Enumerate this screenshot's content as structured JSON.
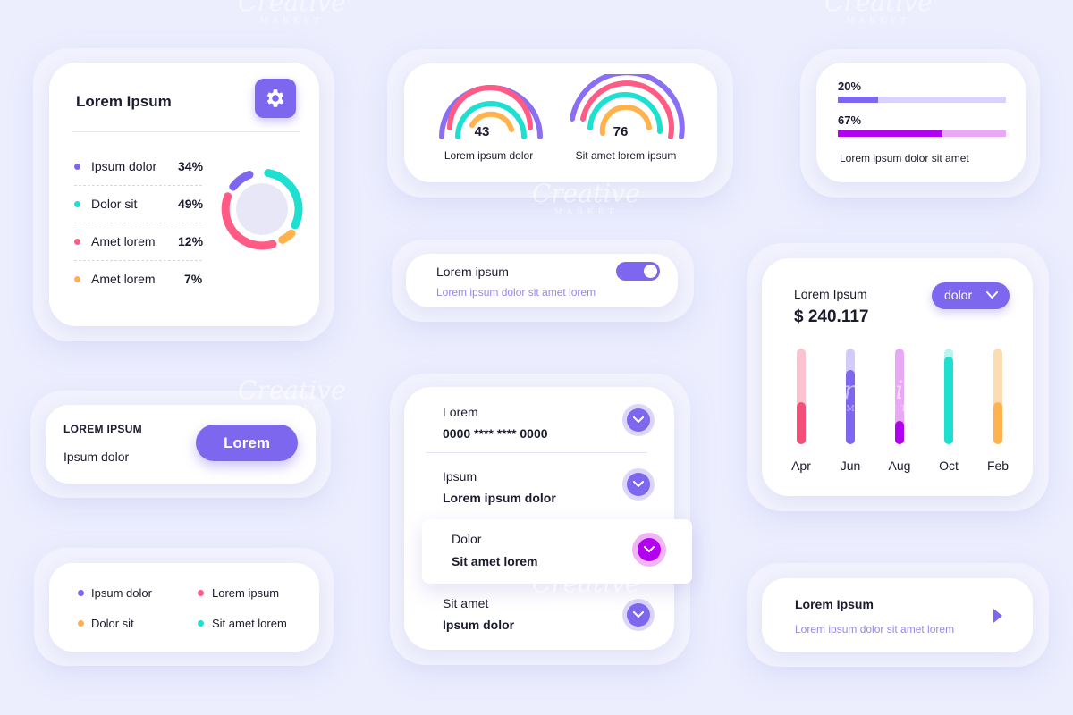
{
  "stats_card": {
    "title": "Lorem Ipsum",
    "items": [
      {
        "label": "Ipsum dolor",
        "value": "34%",
        "color": "#7d67ee"
      },
      {
        "label": "Dolor sit",
        "value": "49%",
        "color": "#1ee0d0"
      },
      {
        "label": "Amet lorem",
        "value": "12%",
        "color": "#ff5b84"
      },
      {
        "label": "Amet lorem",
        "value": "7%",
        "color": "#ffb24d"
      }
    ],
    "gear_icon": "gear-icon"
  },
  "gauges": [
    {
      "value": "43",
      "label": "Lorem ipsum dolor"
    },
    {
      "value": "76",
      "label": "Sit amet lorem ipsum"
    }
  ],
  "progress_card": {
    "bars": [
      {
        "label": "20%",
        "fraction": 0.2,
        "color": "#7d67ee",
        "track": "#d9d2fb"
      },
      {
        "label": "67%",
        "fraction": 0.67,
        "color": "#b200f0",
        "track": "#e8a8f6"
      }
    ],
    "caption": "Lorem ipsum dolor sit amet"
  },
  "toggle_card": {
    "title": "Lorem ipsum",
    "subtitle": "Lorem ipsum dolor sit amet lorem",
    "on": true
  },
  "cta_card": {
    "heading": "LOREM IPSUM",
    "text": "Ipsum dolor",
    "button": "Lorem"
  },
  "legend_card": {
    "items": [
      {
        "label": "Ipsum dolor",
        "color": "#7d67ee"
      },
      {
        "label": "Lorem ipsum",
        "color": "#ff5b84"
      },
      {
        "label": "Dolor sit",
        "color": "#ffb24d"
      },
      {
        "label": "Sit amet lorem",
        "color": "#1ee0d0"
      }
    ]
  },
  "accordion": {
    "items": [
      {
        "label": "Lorem",
        "value": "0000 **** **** 0000"
      },
      {
        "label": "Ipsum",
        "value": "Lorem ipsum dolor"
      },
      {
        "label": "Dolor",
        "value": "Sit amet lorem"
      },
      {
        "label": "Sit amet",
        "value": "Ipsum dolor"
      }
    ]
  },
  "revenue_card": {
    "title": "Lorem Ipsum",
    "amount": "$ 240.117",
    "dropdown": "dolor"
  },
  "chart_data": {
    "type": "bar",
    "categories": [
      "Apr",
      "Jun",
      "Aug",
      "Oct",
      "Feb"
    ],
    "values": [
      0.44,
      0.78,
      0.24,
      0.92,
      0.44
    ],
    "ylim": [
      0,
      1
    ],
    "colors": [
      "#f24f79",
      "#7d67ee",
      "#b200f0",
      "#1ee0d0",
      "#ffb24d"
    ],
    "tracks": [
      "#fbc2cf",
      "#d3ccfb",
      "#e8a8f6",
      "#b8f5ef",
      "#fcdcb3"
    ],
    "grid": false
  },
  "link_card": {
    "title": "Lorem Ipsum",
    "subtitle": "Lorem ipsum dolor sit amet lorem"
  },
  "watermark": {
    "brand": "Creative",
    "sub": "MARKET"
  }
}
